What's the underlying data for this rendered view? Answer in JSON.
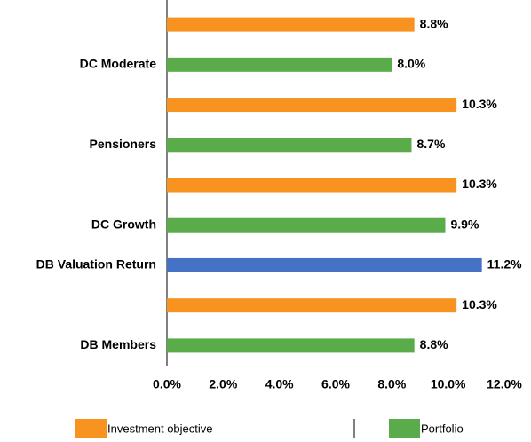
{
  "chart_data": {
    "type": "hbar",
    "categories": [
      null,
      "DC Moderate",
      null,
      "Pensioners",
      null,
      "DC Growth",
      "DB Valuation Return",
      null,
      "DB Members"
    ],
    "values": [
      8.8,
      8.0,
      10.3,
      8.7,
      10.3,
      9.9,
      11.2,
      10.3,
      8.8
    ],
    "value_labels": [
      "8.8%",
      "8.0%",
      "10.3%",
      "8.7%",
      "10.3%",
      "9.9%",
      "11.2%",
      "10.3%",
      "8.8%"
    ],
    "colors": [
      "#f7931e",
      "#5aac4a",
      "#f7931e",
      "#5aac4a",
      "#f7931e",
      "#5aac4a",
      "#4472c4",
      "#f7931e",
      "#5aac4a"
    ],
    "xlim": [
      0,
      12
    ],
    "xticks": [
      {
        "value": 0,
        "label": "0.0%"
      },
      {
        "value": 2,
        "label": "2.0%"
      },
      {
        "value": 4,
        "label": "4.0%"
      },
      {
        "value": 6,
        "label": "6.0%"
      },
      {
        "value": 8,
        "label": "8.0%"
      },
      {
        "value": 10,
        "label": "10.0%"
      },
      {
        "value": 12,
        "label": "12.0%"
      }
    ],
    "legend": [
      {
        "name": "Investment objective",
        "color": "#f7931e"
      },
      {
        "name": "Portfolio",
        "color": "#5aac4a"
      }
    ],
    "grid": false
  }
}
